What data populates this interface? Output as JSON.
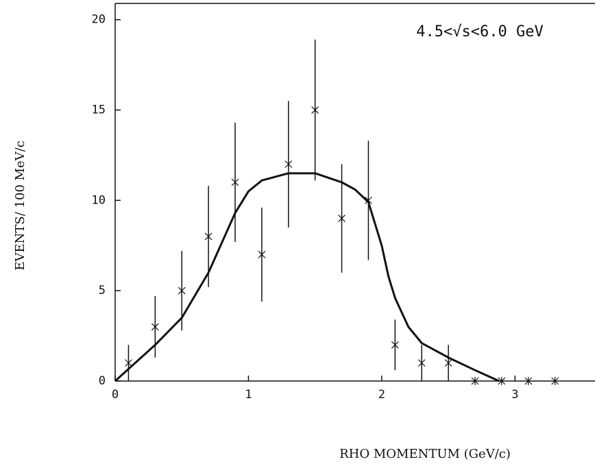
{
  "chart_data": {
    "type": "scatter",
    "annotation": "4.5<√s<6.0 GeV",
    "x_label": "RHO MOMENTUM (GeV/c)",
    "y_label": "EVENTS/ 100 MeV/c",
    "xlim": [
      0,
      3.6
    ],
    "ylim": [
      0,
      20.9
    ],
    "xticks": [
      0,
      1,
      2,
      3
    ],
    "yticks": [
      0,
      5,
      10,
      15,
      20
    ],
    "color": "#111111",
    "points": {
      "x": [
        0.1,
        0.3,
        0.5,
        0.7,
        0.9,
        1.1,
        1.3,
        1.5,
        1.7,
        1.9,
        2.1,
        2.3,
        2.5,
        2.7,
        2.9,
        3.1,
        3.3
      ],
      "values": [
        1,
        3,
        5,
        8,
        11,
        7,
        12,
        15,
        9,
        10,
        2,
        1,
        1,
        0,
        0,
        0,
        0
      ],
      "errors": [
        1,
        1.7,
        2.2,
        2.8,
        3.3,
        2.6,
        3.5,
        3.9,
        3,
        3.3,
        1.4,
        1,
        1,
        null,
        null,
        null,
        null
      ]
    },
    "fit": {
      "x": [
        0,
        0.3,
        0.5,
        0.7,
        0.9,
        1.0,
        1.1,
        1.3,
        1.5,
        1.7,
        1.8,
        1.9,
        2.0,
        2.05,
        2.1,
        2.2,
        2.3,
        2.5,
        2.7,
        2.88
      ],
      "values": [
        0,
        2,
        3.5,
        6,
        9.3,
        10.5,
        11.1,
        11.5,
        11.5,
        11,
        10.6,
        9.9,
        7.5,
        5.8,
        4.6,
        3,
        2.1,
        1.3,
        0.6,
        0
      ]
    }
  }
}
